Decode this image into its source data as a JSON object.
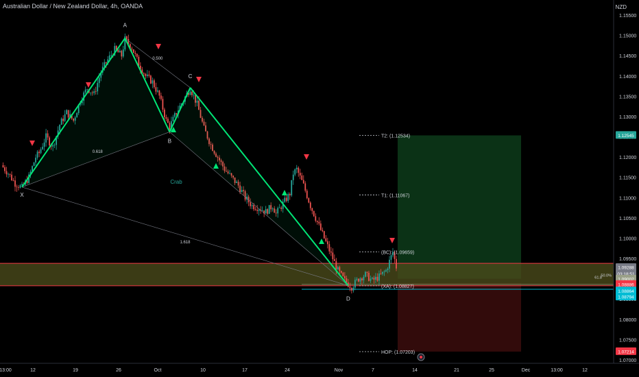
{
  "header": {
    "title": "Australian Dollar / New Zealand Dollar, 4h, OANDA"
  },
  "axis": {
    "currency": "NZD"
  },
  "chart_data": {
    "type": "line",
    "ylim": [
      1.07,
      1.155
    ],
    "y_ticks": [
      "1.07000",
      "1.07500",
      "1.08000",
      "1.08500",
      "1.09000",
      "1.09500",
      "1.10000",
      "1.10500",
      "1.11000",
      "1.11500",
      "1.12000",
      "1.12500",
      "1.13000",
      "1.13500",
      "1.14000",
      "1.14500",
      "1.15000",
      "1.15500"
    ],
    "x_ticks": [
      "13:00",
      "12",
      "19",
      "26",
      "Oct",
      "10",
      "17",
      "24",
      "Nov",
      "7",
      "14",
      "21",
      "25",
      "Dec",
      "13:00",
      "12"
    ],
    "price_series": [
      [
        0,
        1.118
      ],
      [
        4,
        1.116
      ],
      [
        8,
        1.1135
      ],
      [
        12,
        1.1125
      ],
      [
        16,
        1.115
      ],
      [
        20,
        1.12
      ],
      [
        22,
        1.121
      ],
      [
        26,
        1.125
      ],
      [
        30,
        1.1225
      ],
      [
        34,
        1.128
      ],
      [
        38,
        1.131
      ],
      [
        42,
        1.129
      ],
      [
        46,
        1.134
      ],
      [
        50,
        1.137
      ],
      [
        54,
        1.1355
      ],
      [
        58,
        1.141
      ],
      [
        62,
        1.144
      ],
      [
        66,
        1.1465
      ],
      [
        70,
        1.145
      ],
      [
        72,
        1.149
      ],
      [
        76,
        1.147
      ],
      [
        80,
        1.143
      ],
      [
        84,
        1.14
      ],
      [
        88,
        1.1385
      ],
      [
        92,
        1.135
      ],
      [
        96,
        1.129
      ],
      [
        98,
        1.1275
      ],
      [
        102,
        1.131
      ],
      [
        106,
        1.134
      ],
      [
        110,
        1.137
      ],
      [
        114,
        1.133
      ],
      [
        118,
        1.127
      ],
      [
        122,
        1.123
      ],
      [
        126,
        1.12
      ],
      [
        130,
        1.117
      ],
      [
        134,
        1.115
      ],
      [
        138,
        1.113
      ],
      [
        142,
        1.11
      ],
      [
        146,
        1.108
      ],
      [
        150,
        1.1075
      ],
      [
        154,
        1.1065
      ],
      [
        158,
        1.108
      ],
      [
        160,
        1.106
      ],
      [
        164,
        1.1085
      ],
      [
        168,
        1.111
      ],
      [
        170,
        1.116
      ],
      [
        172,
        1.117
      ],
      [
        176,
        1.113
      ],
      [
        180,
        1.108
      ],
      [
        184,
        1.104
      ],
      [
        188,
        1.1
      ],
      [
        192,
        1.096
      ],
      [
        196,
        1.092
      ],
      [
        200,
        1.0895
      ],
      [
        204,
        1.088
      ],
      [
        208,
        1.09
      ],
      [
        212,
        1.091
      ],
      [
        216,
        1.0895
      ],
      [
        220,
        1.0905
      ],
      [
        224,
        1.092
      ],
      [
        228,
        1.0966
      ],
      [
        230,
        1.0929
      ]
    ],
    "harmonic_pattern": {
      "name": "Crab",
      "points": [
        {
          "label": "X",
          "t": 12,
          "price": 1.1126
        },
        {
          "label": "A",
          "t": 72,
          "price": 1.1493
        },
        {
          "label": "B",
          "t": 98,
          "price": 1.1262
        },
        {
          "label": "C",
          "t": 110,
          "price": 1.1371
        },
        {
          "label": "D",
          "t": 202,
          "price": 1.0883
        }
      ],
      "ratios": [
        {
          "text": "0.618",
          "t": 56,
          "price": 1.121
        },
        {
          "text": "0.500",
          "t": 91,
          "price": 1.144
        },
        {
          "text": "1.618",
          "t": 107,
          "price": 1.0987
        }
      ]
    },
    "targets": [
      {
        "label": "T2: (1.12534)",
        "price": 1.12534
      },
      {
        "label": "T1: (1.11067)",
        "price": 1.11067
      },
      {
        "label": "(BC): (1.09659)",
        "price": 1.09659
      },
      {
        "label": "(XA): (1.08827)",
        "price": 1.08827
      },
      {
        "label": "HOP: (1.07203)",
        "price": 1.07203
      }
    ],
    "price_labels": [
      {
        "text": "1.12545",
        "price": 1.12545,
        "color": "#26a69a"
      },
      {
        "text": "1.09288",
        "price": 1.09288,
        "color": "#787b86"
      },
      {
        "text": "03:18:51",
        "price": 1.0913,
        "color": "#787b86"
      },
      {
        "text": "1.09002",
        "price": 1.09002,
        "color": "#9aa088"
      },
      {
        "text": "1.08886",
        "price": 1.0887,
        "color": "#f23645"
      },
      {
        "text": "1.08864",
        "price": 1.0871,
        "color": "#00bcd4"
      },
      {
        "text": "1.08794",
        "price": 1.0856,
        "color": "#00bcd4"
      },
      {
        "text": "1.07214",
        "price": 1.07214,
        "color": "#f23645"
      }
    ],
    "right_notes": [
      "50.0%",
      "61.8"
    ],
    "colors": {
      "up": "#26a69a",
      "down": "#ef5350",
      "pattern": "#00e676",
      "zone_fill": "#4a4a1a",
      "zone_line": "#f23645",
      "target_zone": "#0d3b1a",
      "stop_zone": "#3b0d0d"
    }
  }
}
